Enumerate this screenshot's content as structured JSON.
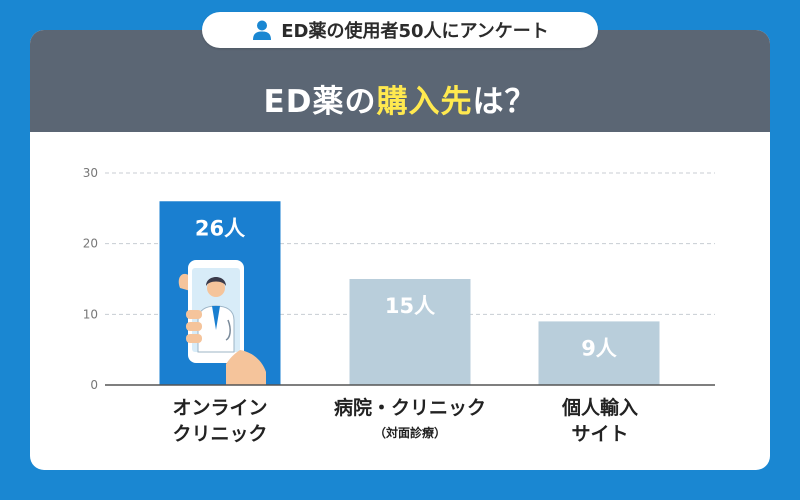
{
  "header": {
    "survey_label": "ED薬の使用者50人にアンケート",
    "title_prefix": "ED薬の",
    "title_highlight": "購入先",
    "title_suffix": "は？",
    "colors": {
      "header_bg": "#5b6674",
      "highlight": "#ffe94f",
      "page_bg": "#1a87d2"
    }
  },
  "icons": {
    "survey": "person-icon",
    "featured_bar": "smartphone-doctor-icon"
  },
  "chart_data": {
    "type": "bar",
    "categories": [
      "オンライン\nクリニック",
      "病院・クリニック\n（対面診療）",
      "個人輸入\nサイト"
    ],
    "values": [
      26,
      15,
      9
    ],
    "value_labels": [
      "26人",
      "15人",
      "9人"
    ],
    "category_lines": [
      [
        "オンライン",
        "クリニック"
      ],
      [
        "病院・クリニック",
        "（対面診療）"
      ],
      [
        "個人輸入",
        "サイト"
      ]
    ],
    "ylim": [
      0,
      30
    ],
    "yticks": [
      0,
      10,
      20,
      30
    ],
    "grid": true,
    "colors": [
      "#1a7fd0",
      "#b9cedb",
      "#b9cedb"
    ]
  }
}
